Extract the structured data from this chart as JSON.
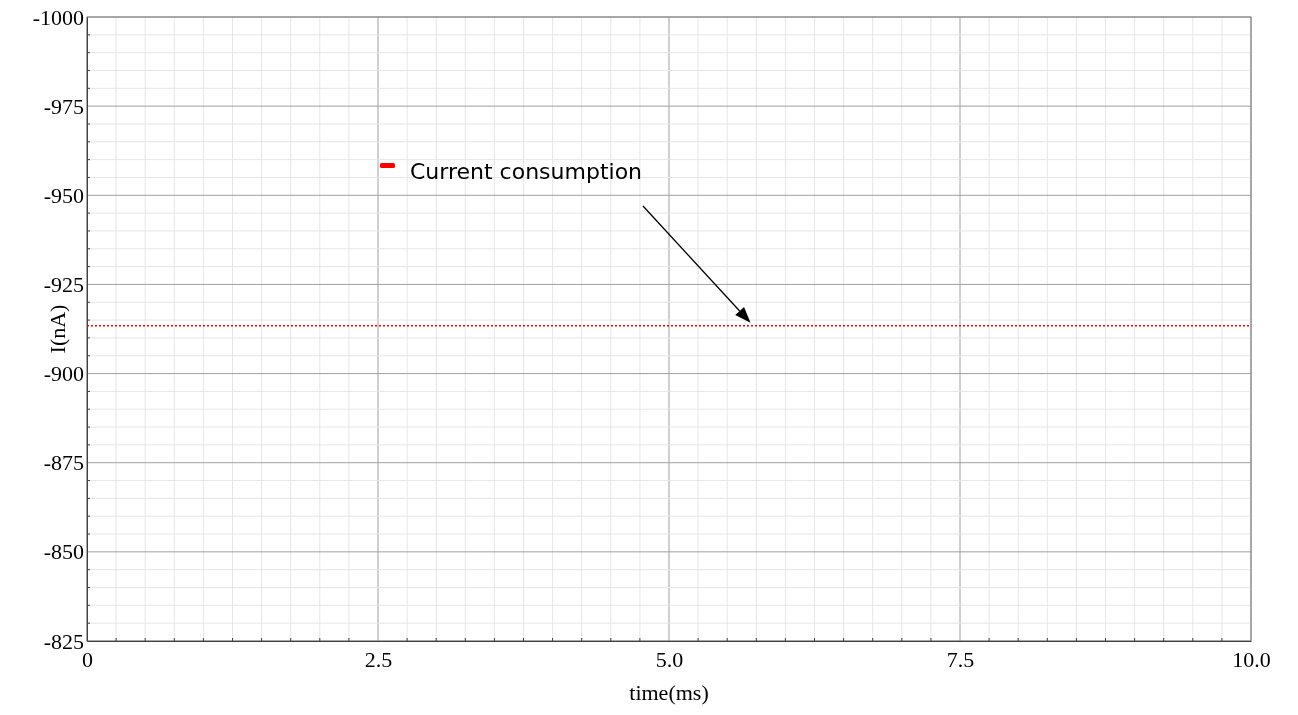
{
  "chart_data": {
    "type": "line",
    "xlabel": "time(ms)",
    "ylabel": "I(nA)",
    "x": [
      0,
      10
    ],
    "series": [
      {
        "name": "Current consumption",
        "color": "#ff0000",
        "values": [
          -913.4,
          -913.4
        ]
      }
    ],
    "xlim": [
      0,
      10
    ],
    "xticks": [
      0,
      {
        "value": 2.5,
        "label": "2.5"
      },
      {
        "value": 5,
        "label": "5.0"
      },
      {
        "value": 7.5,
        "label": "7.5"
      },
      {
        "value": 10,
        "label": "10.0"
      }
    ],
    "ylim": [
      -825,
      -1000
    ],
    "yticks": [
      -825,
      -850,
      -875,
      -900,
      -925,
      -950,
      -975,
      -1000
    ],
    "grid": true,
    "legend": "top left",
    "line_style": "dotted",
    "marker": "none"
  }
}
